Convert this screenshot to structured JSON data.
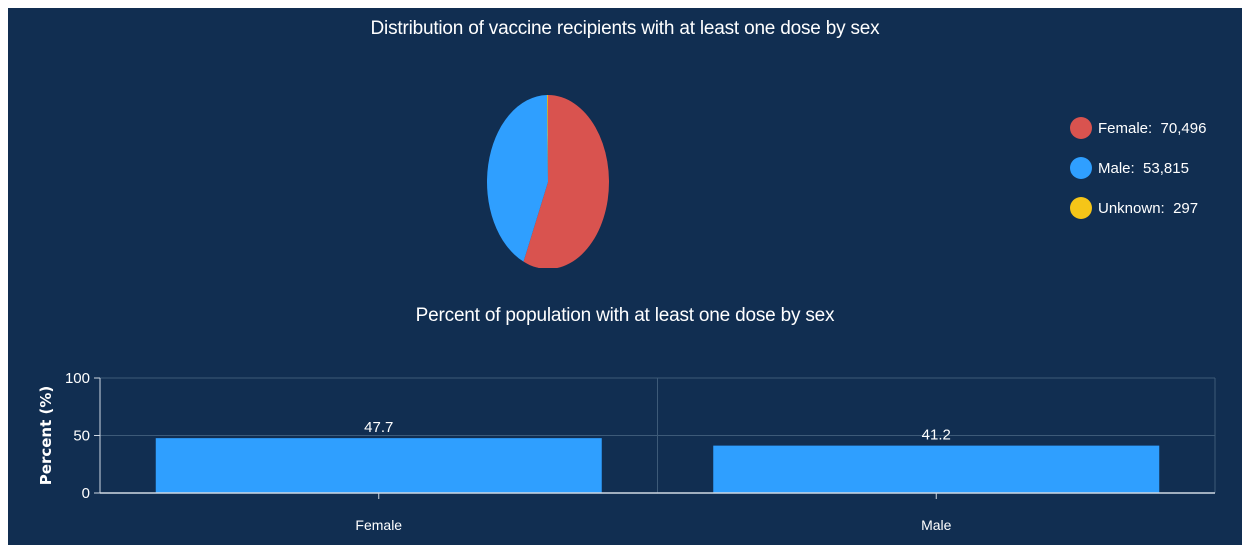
{
  "chart_data": [
    {
      "type": "pie",
      "title": "Distribution of vaccine recipients with at least one dose by sex",
      "slices": [
        {
          "label": "Female",
          "value": 70496,
          "value_text": "70,496",
          "color": "#d9534f"
        },
        {
          "label": "Male",
          "value": 53815,
          "value_text": "53,815",
          "color": "#2f9fff"
        },
        {
          "label": "Unknown",
          "value": 297,
          "value_text": "297",
          "color": "#f5c518"
        }
      ],
      "legend_position": "right"
    },
    {
      "type": "bar",
      "title": "Percent of population with at least one dose by sex",
      "categories": [
        "Female",
        "Male"
      ],
      "values": [
        47.7,
        41.2
      ],
      "value_labels": [
        "47.7",
        "41.2"
      ],
      "ylabel": "Percent (%)",
      "ylim": [
        0,
        100
      ],
      "yticks": [
        0,
        50,
        100
      ],
      "grid": true,
      "bar_color": "#2f9fff"
    }
  ]
}
